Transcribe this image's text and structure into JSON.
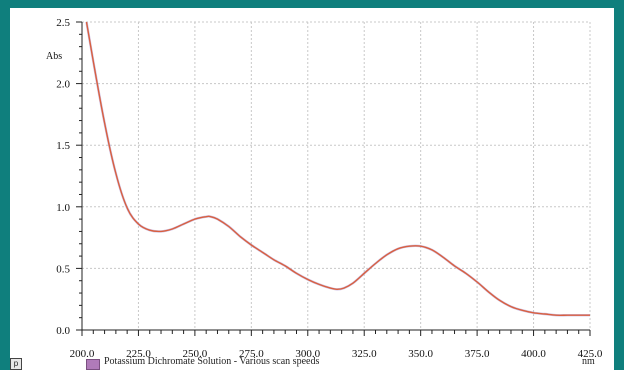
{
  "chart_data": {
    "type": "line",
    "ylabel": "Abs",
    "xunit": "nm",
    "xlim": [
      200,
      425
    ],
    "ylim": [
      0,
      2.5
    ],
    "xticks": [
      "200.0",
      "225.0",
      "250.0",
      "275.0",
      "300.0",
      "325.0",
      "350.0",
      "375.0",
      "400.0",
      "425.0"
    ],
    "yticks": [
      "0.0",
      "0.5",
      "1.0",
      "1.5",
      "2.0",
      "2.5"
    ],
    "grid": true,
    "series": [
      {
        "name": "Potassium Dichromate Solution - Various scan speeds",
        "color": "#d9603f",
        "x": [
          202,
          205,
          210,
          215,
          220,
          225,
          230,
          235,
          240,
          245,
          250,
          255,
          257,
          260,
          265,
          270,
          275,
          280,
          285,
          290,
          295,
          300,
          305,
          310,
          313,
          316,
          320,
          325,
          330,
          335,
          340,
          345,
          350,
          355,
          360,
          365,
          370,
          375,
          380,
          385,
          390,
          395,
          400,
          405,
          410,
          415,
          420,
          425
        ],
        "y": [
          2.5,
          2.18,
          1.68,
          1.27,
          0.99,
          0.86,
          0.81,
          0.8,
          0.82,
          0.86,
          0.9,
          0.92,
          0.92,
          0.9,
          0.84,
          0.76,
          0.69,
          0.63,
          0.57,
          0.52,
          0.46,
          0.41,
          0.37,
          0.34,
          0.33,
          0.34,
          0.38,
          0.46,
          0.54,
          0.61,
          0.66,
          0.68,
          0.68,
          0.65,
          0.59,
          0.52,
          0.46,
          0.39,
          0.31,
          0.24,
          0.19,
          0.16,
          0.14,
          0.13,
          0.12,
          0.12,
          0.12,
          0.12
        ]
      }
    ]
  },
  "legend": {
    "box_letter": "p",
    "swatch_color": "#b07bb9"
  }
}
